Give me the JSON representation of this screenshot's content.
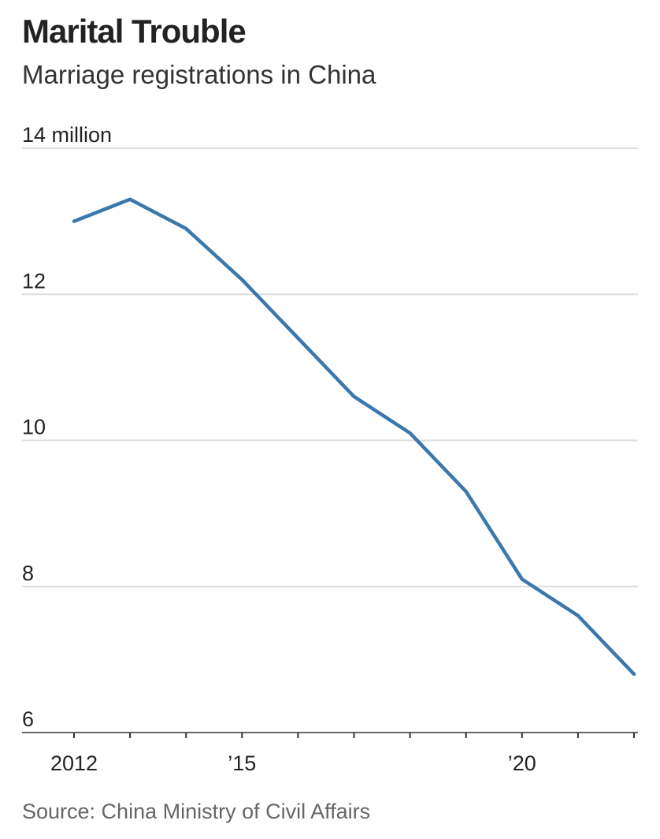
{
  "header": {
    "title": "Marital Trouble",
    "subtitle": "Marriage registrations in China"
  },
  "footer": {
    "source": "Source: China Ministry of Civil Affairs"
  },
  "colors": {
    "line": "#3a78ad",
    "grid": "#dddddd",
    "axis": "#333333"
  },
  "chart_data": {
    "type": "line",
    "title": "Marital Trouble",
    "subtitle": "Marriage registrations in China",
    "ylabel": "",
    "xlabel": "",
    "y_unit": "million",
    "ylim": [
      6,
      14
    ],
    "xlim": [
      2012,
      2022
    ],
    "grid": true,
    "y_ticks": [
      {
        "value": 14,
        "label": "14 million"
      },
      {
        "value": 12,
        "label": "12"
      },
      {
        "value": 10,
        "label": "10"
      },
      {
        "value": 8,
        "label": "8"
      },
      {
        "value": 6,
        "label": "6"
      }
    ],
    "x_ticks": [
      2012,
      2013,
      2014,
      2015,
      2016,
      2017,
      2018,
      2019,
      2020,
      2021,
      2022
    ],
    "x_tick_labels": [
      {
        "value": 2012,
        "label": "2012"
      },
      {
        "value": 2015,
        "label": "’15"
      },
      {
        "value": 2020,
        "label": "’20"
      }
    ],
    "series": [
      {
        "x": [
          2012,
          2013,
          2014,
          2015,
          2016,
          2017,
          2018,
          2019,
          2020,
          2021,
          2022
        ],
        "values": [
          13.0,
          13.3,
          12.9,
          12.2,
          11.4,
          10.6,
          10.1,
          9.3,
          8.1,
          7.6,
          6.8
        ]
      }
    ]
  }
}
